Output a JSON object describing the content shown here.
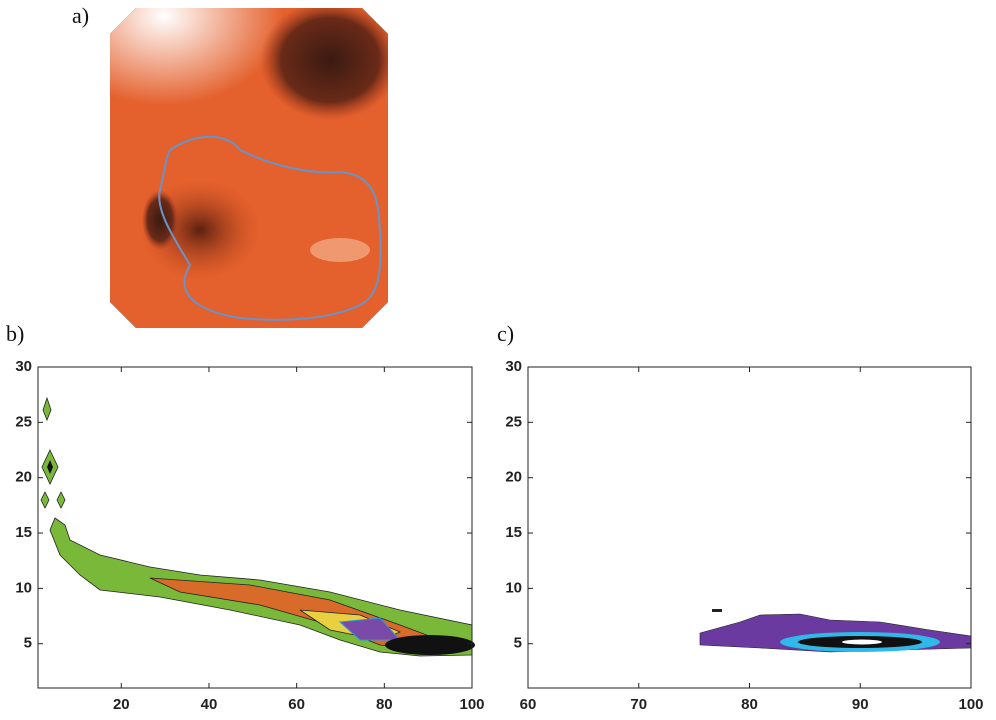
{
  "image_panel": {
    "label": "a)"
  },
  "chart_data": [
    {
      "type": "contour",
      "label": "b)",
      "xlim": [
        1,
        100
      ],
      "ylim": [
        1,
        30
      ],
      "xticks": [
        20,
        40,
        60,
        80,
        100
      ],
      "yticks": [
        5,
        10,
        15,
        20,
        25,
        30
      ]
    },
    {
      "type": "contour",
      "label": "c)",
      "xlim": [
        60,
        100
      ],
      "ylim": [
        1,
        30
      ],
      "xticks": [
        60,
        70,
        80,
        90,
        100
      ],
      "yticks": [
        5,
        10,
        15,
        20,
        25,
        30
      ]
    }
  ]
}
